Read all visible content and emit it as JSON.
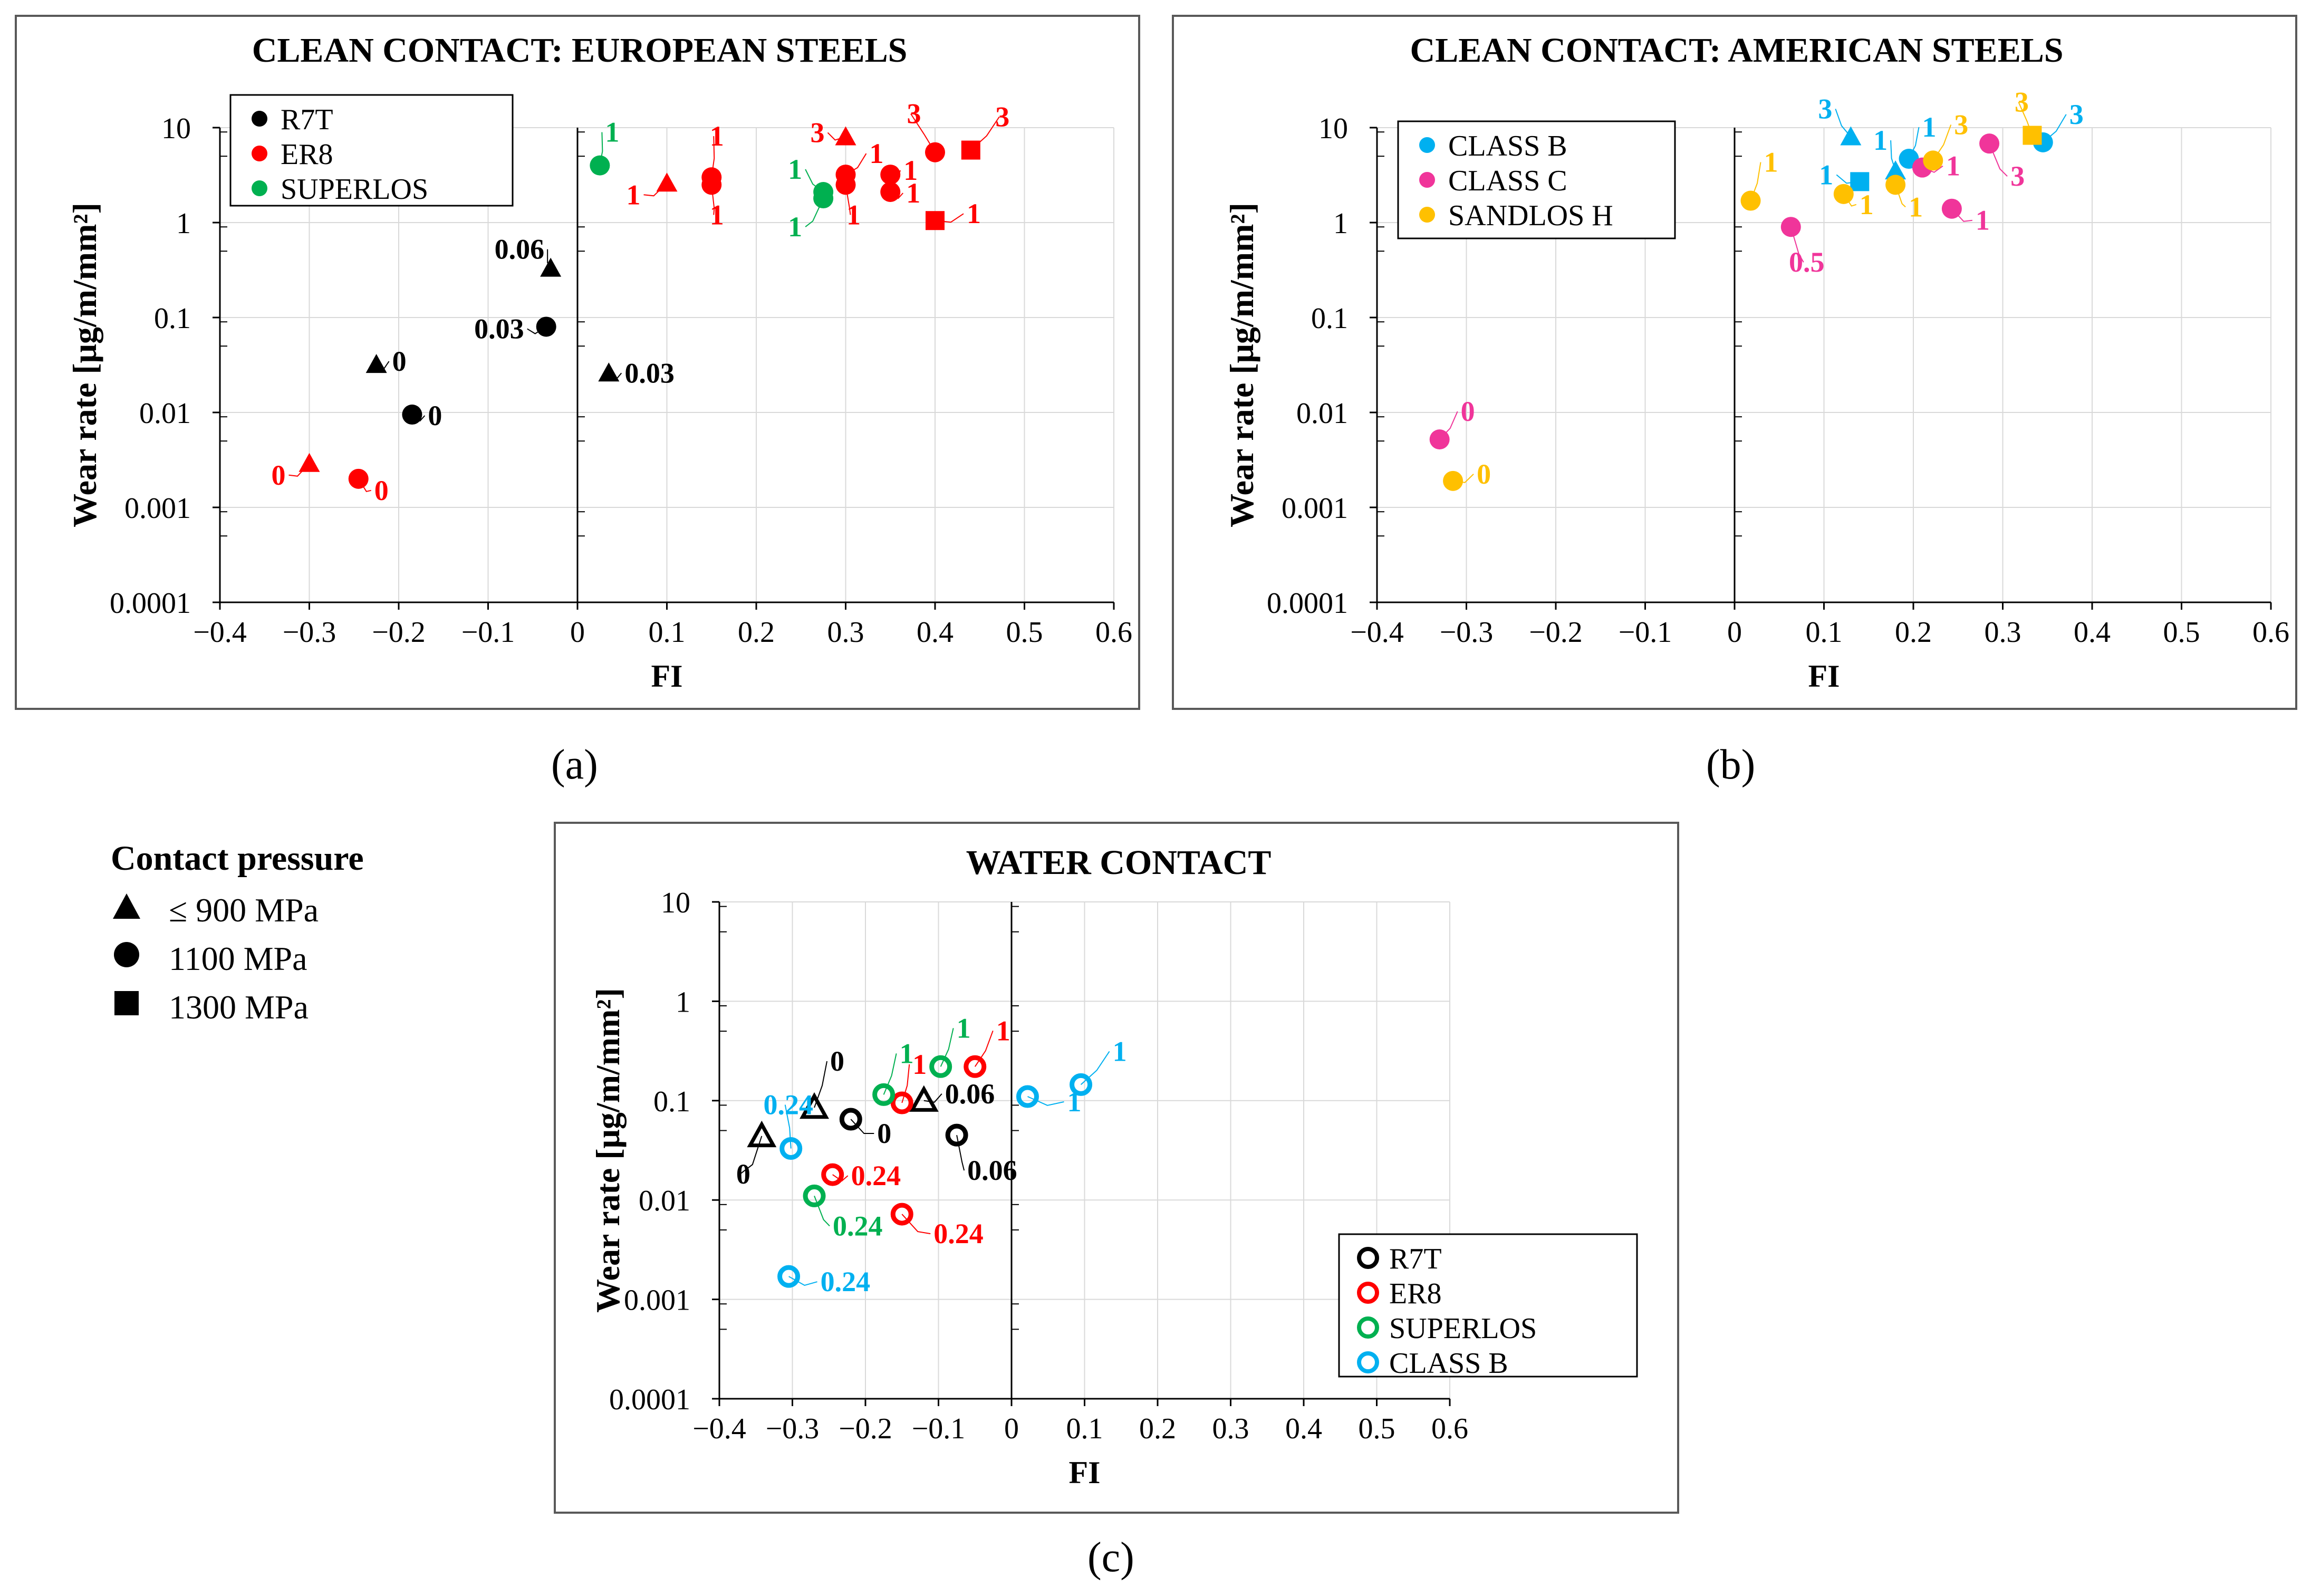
{
  "captions": {
    "a": "(a)",
    "b": "(b)",
    "c": "(c)"
  },
  "pressure_legend": {
    "title": "Contact pressure",
    "items": [
      {
        "marker": "triangle",
        "label": "≤ 900 MPa"
      },
      {
        "marker": "circle",
        "label": "1100 MPa"
      },
      {
        "marker": "square",
        "label": "1300 MPa"
      }
    ]
  },
  "colors": {
    "R7T": "#000000",
    "ER8": "#ff0000",
    "SUPERLOS": "#00b050",
    "CLASS B": "#00b0f0",
    "CLASS C": "#f0359a",
    "SANDLOS H": "#ffc000"
  },
  "chart_data": [
    {
      "id": "a",
      "type": "scatter",
      "title": "CLEAN CONTACT: EUROPEAN STEELS",
      "xlabel": "FI",
      "ylabel": "Wear rate [μg/m/mm²]",
      "xlim": [
        -0.4,
        0.6
      ],
      "ylim": [
        0.0001,
        10
      ],
      "yscale": "log",
      "xticks": [
        "−0.4",
        "−0.3",
        "−0.2",
        "−0.1",
        "0",
        "0.1",
        "0.2",
        "0.3",
        "0.4",
        "0.5",
        "0.6"
      ],
      "yticks": [
        "10",
        "1",
        "0.1",
        "0.01",
        "0.001",
        "0.0001"
      ],
      "legend": {
        "position": "top-left",
        "entries": [
          "R7T",
          "ER8",
          "SUPERLOS"
        ]
      },
      "series": [
        {
          "name": "R7T",
          "points": [
            {
              "x": -0.03,
              "y": 0.33,
              "shape": "triangle",
              "label": "0.06"
            },
            {
              "x": -0.035,
              "y": 0.08,
              "shape": "circle",
              "label": "0.03"
            },
            {
              "x": -0.225,
              "y": 0.032,
              "shape": "triangle",
              "label": "0"
            },
            {
              "x": -0.185,
              "y": 0.0095,
              "shape": "circle",
              "label": "0"
            },
            {
              "x": 0.035,
              "y": 0.026,
              "shape": "triangle",
              "label": "0.03"
            }
          ]
        },
        {
          "name": "ER8",
          "points": [
            {
              "x": -0.3,
              "y": 0.0029,
              "shape": "triangle",
              "label": "0"
            },
            {
              "x": -0.245,
              "y": 0.002,
              "shape": "circle",
              "label": "0"
            },
            {
              "x": 0.1,
              "y": 2.6,
              "shape": "triangle",
              "label": "1"
            },
            {
              "x": 0.15,
              "y": 3.0,
              "shape": "circle",
              "label": "1"
            },
            {
              "x": 0.15,
              "y": 2.5,
              "shape": "circle",
              "label": "1"
            },
            {
              "x": 0.3,
              "y": 8.0,
              "shape": "triangle",
              "label": "3"
            },
            {
              "x": 0.3,
              "y": 3.2,
              "shape": "circle",
              "label": "1"
            },
            {
              "x": 0.3,
              "y": 2.5,
              "shape": "circle",
              "label": "1"
            },
            {
              "x": 0.35,
              "y": 3.2,
              "shape": "circle",
              "label": "1"
            },
            {
              "x": 0.35,
              "y": 2.1,
              "shape": "circle",
              "label": "1"
            },
            {
              "x": 0.4,
              "y": 5.5,
              "shape": "circle",
              "label": "3"
            },
            {
              "x": 0.44,
              "y": 5.8,
              "shape": "square",
              "label": "3"
            },
            {
              "x": 0.4,
              "y": 1.05,
              "shape": "square",
              "label": "1"
            }
          ]
        },
        {
          "name": "SUPERLOS",
          "points": [
            {
              "x": 0.025,
              "y": 4.0,
              "shape": "circle",
              "label": "1"
            },
            {
              "x": 0.275,
              "y": 2.1,
              "shape": "circle",
              "label": "1"
            },
            {
              "x": 0.275,
              "y": 1.8,
              "shape": "circle",
              "label": "1"
            }
          ]
        }
      ]
    },
    {
      "id": "b",
      "type": "scatter",
      "title": "CLEAN CONTACT: AMERICAN STEELS",
      "xlabel": "FI",
      "ylabel": "Wear rate [μg/m/mm²]",
      "xlim": [
        -0.4,
        0.6
      ],
      "ylim": [
        0.0001,
        10
      ],
      "yscale": "log",
      "xticks": [
        "−0.4",
        "−0.3",
        "−0.2",
        "−0.1",
        "0",
        "0.1",
        "0.2",
        "0.3",
        "0.4",
        "0.5",
        "0.6"
      ],
      "yticks": [
        "10",
        "1",
        "0.1",
        "0.01",
        "0.001",
        "0.0001"
      ],
      "legend": {
        "position": "top-left",
        "entries": [
          "CLASS B",
          "CLASS C",
          "SANDLOS H"
        ]
      },
      "series": [
        {
          "name": "CLASS B",
          "points": [
            {
              "x": 0.13,
              "y": 8.0,
              "shape": "triangle",
              "label": "3"
            },
            {
              "x": 0.18,
              "y": 3.5,
              "shape": "triangle",
              "label": "1"
            },
            {
              "x": 0.195,
              "y": 4.7,
              "shape": "circle",
              "label": "1"
            },
            {
              "x": 0.14,
              "y": 2.7,
              "shape": "square",
              "label": "1"
            },
            {
              "x": 0.345,
              "y": 7.0,
              "shape": "circle",
              "label": "3"
            }
          ]
        },
        {
          "name": "CLASS C",
          "points": [
            {
              "x": -0.33,
              "y": 0.0052,
              "shape": "circle",
              "label": "0"
            },
            {
              "x": 0.063,
              "y": 0.9,
              "shape": "circle",
              "label": "0.5"
            },
            {
              "x": 0.21,
              "y": 3.8,
              "shape": "circle",
              "label": "1"
            },
            {
              "x": 0.243,
              "y": 1.4,
              "shape": "circle",
              "label": "1"
            },
            {
              "x": 0.285,
              "y": 6.8,
              "shape": "circle",
              "label": "3"
            }
          ]
        },
        {
          "name": "SANDLOS H",
          "points": [
            {
              "x": -0.315,
              "y": 0.0019,
              "shape": "circle",
              "label": "0"
            },
            {
              "x": 0.018,
              "y": 1.7,
              "shape": "circle",
              "label": "1"
            },
            {
              "x": 0.122,
              "y": 2.0,
              "shape": "circle",
              "label": "1"
            },
            {
              "x": 0.18,
              "y": 2.5,
              "shape": "circle",
              "label": "1"
            },
            {
              "x": 0.222,
              "y": 4.5,
              "shape": "circle",
              "label": "3"
            },
            {
              "x": 0.333,
              "y": 8.3,
              "shape": "square",
              "label": "3"
            }
          ]
        }
      ]
    },
    {
      "id": "c",
      "type": "scatter",
      "title": "WATER CONTACT",
      "xlabel": "FI",
      "ylabel": "Wear rate [μg/m/mm²]",
      "xlim": [
        -0.4,
        0.6
      ],
      "ylim": [
        0.0001,
        10
      ],
      "yscale": "log",
      "xticks": [
        "−0.4",
        "−0.3",
        "−0.2",
        "−0.1",
        "0",
        "0.1",
        "0.2",
        "0.3",
        "0.4",
        "0.5",
        "0.6"
      ],
      "yticks": [
        "10",
        "1",
        "0.1",
        "0.01",
        "0.001",
        "0.0001"
      ],
      "legend": {
        "position": "bottom-right",
        "entries": [
          "R7T",
          "ER8",
          "SUPERLOS",
          "CLASS B"
        ]
      },
      "series": [
        {
          "name": "R7T",
          "points": [
            {
              "x": -0.342,
              "y": 0.044,
              "shape": "triangle",
              "label": "0"
            },
            {
              "x": -0.27,
              "y": 0.085,
              "shape": "triangle",
              "label": "0"
            },
            {
              "x": -0.22,
              "y": 0.065,
              "shape": "circle",
              "label": "0"
            },
            {
              "x": -0.12,
              "y": 0.1,
              "shape": "triangle",
              "label": "0.06"
            },
            {
              "x": -0.075,
              "y": 0.045,
              "shape": "circle",
              "label": "0.06"
            }
          ]
        },
        {
          "name": "ER8",
          "points": [
            {
              "x": -0.05,
              "y": 0.22,
              "shape": "circle",
              "label": "1"
            },
            {
              "x": -0.15,
              "y": 0.095,
              "shape": "circle",
              "label": "1"
            },
            {
              "x": -0.245,
              "y": 0.018,
              "shape": "circle",
              "label": "0.24"
            },
            {
              "x": -0.15,
              "y": 0.0072,
              "shape": "circle",
              "label": "0.24"
            }
          ]
        },
        {
          "name": "SUPERLOS",
          "points": [
            {
              "x": -0.175,
              "y": 0.115,
              "shape": "circle",
              "label": "1"
            },
            {
              "x": -0.097,
              "y": 0.22,
              "shape": "circle",
              "label": "1"
            },
            {
              "x": -0.27,
              "y": 0.011,
              "shape": "circle",
              "label": "0.24"
            }
          ]
        },
        {
          "name": "CLASS B",
          "points": [
            {
              "x": -0.302,
              "y": 0.033,
              "shape": "circle",
              "label": "0.24"
            },
            {
              "x": -0.305,
              "y": 0.0017,
              "shape": "circle",
              "label": "0.24"
            },
            {
              "x": 0.022,
              "y": 0.11,
              "shape": "circle",
              "label": "1"
            },
            {
              "x": 0.095,
              "y": 0.145,
              "shape": "circle",
              "label": "1"
            }
          ]
        }
      ]
    }
  ]
}
